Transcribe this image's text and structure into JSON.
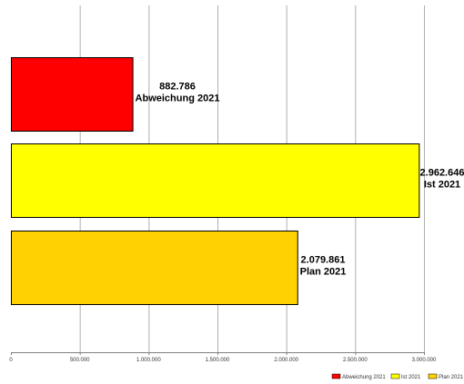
{
  "chart_data": {
    "type": "bar",
    "orientation": "horizontal",
    "categories": [
      "Abweichung 2021",
      "Ist 2021",
      "Plan 2021"
    ],
    "values": [
      882786,
      2962646,
      2079861
    ],
    "value_labels": [
      "882.786",
      "2.962.646",
      "2.079.861"
    ],
    "colors": [
      "#ff0000",
      "#ffff00",
      "#ffd200"
    ],
    "xlim": [
      0,
      3000000
    ],
    "x_ticks": [
      0,
      500000,
      1000000,
      1500000,
      2000000,
      2500000,
      3000000
    ],
    "x_tick_labels": [
      "0",
      "500.000",
      "1.000.000",
      "1.500.000",
      "2.000.000",
      "2.500.000",
      "3.000.000"
    ],
    "grid": true,
    "legend_position": "bottom-right",
    "legend": [
      {
        "label": "Abweichung 2021",
        "color": "#ff0000"
      },
      {
        "label": "Ist 2021",
        "color": "#ffff00"
      },
      {
        "label": "Plan 2021",
        "color": "#ffd200"
      }
    ]
  }
}
